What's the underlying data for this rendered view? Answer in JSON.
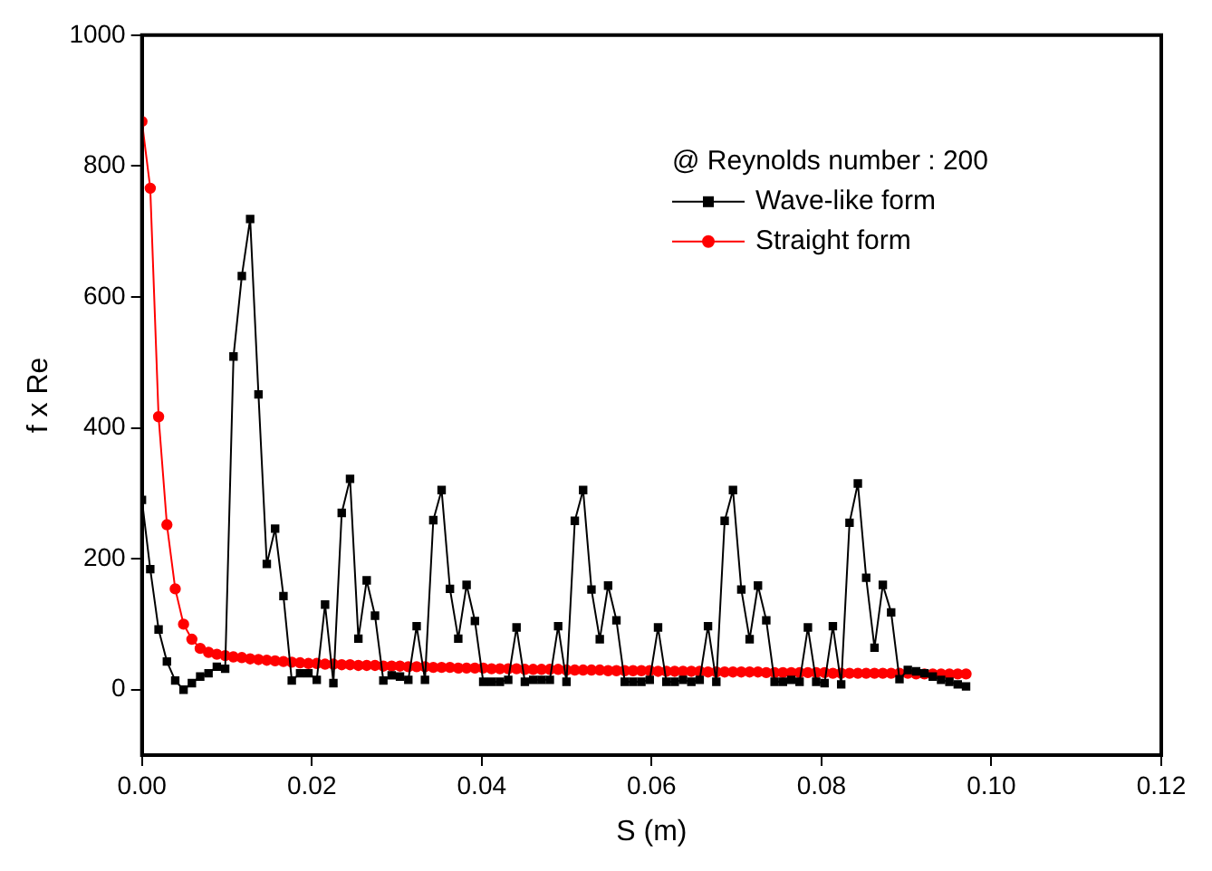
{
  "chart_data": {
    "type": "line",
    "xlabel": "S (m)",
    "ylabel": "f x Re",
    "legend_title": "@ Reynolds number : 200",
    "legend": "top right",
    "grid": false,
    "line_style": "solid",
    "xlim": [
      0,
      0.12
    ],
    "xticks": [
      {
        "value": 0,
        "label": "0.00"
      },
      {
        "value": 0.02,
        "label": "0.02"
      },
      {
        "value": 0.04,
        "label": "0.04"
      },
      {
        "value": 0.06,
        "label": "0.06"
      },
      {
        "value": 0.08,
        "label": "0.08"
      },
      {
        "value": 0.1,
        "label": "0.10"
      },
      {
        "value": 0.12,
        "label": "0.12"
      }
    ],
    "ylim": [
      -100,
      1000
    ],
    "yticks": [
      0,
      200,
      400,
      600,
      800,
      1000
    ],
    "x": [
      0,
      0.00098,
      0.00196,
      0.00294,
      0.00392,
      0.0049,
      0.00588,
      0.00686,
      0.00784,
      0.00882,
      0.0098,
      0.01078,
      0.01176,
      0.01274,
      0.01372,
      0.0147,
      0.01568,
      0.01666,
      0.01764,
      0.01862,
      0.0196,
      0.02058,
      0.02156,
      0.02254,
      0.02352,
      0.0245,
      0.02548,
      0.02646,
      0.02744,
      0.02842,
      0.0294,
      0.03038,
      0.03136,
      0.03234,
      0.03332,
      0.0343,
      0.03528,
      0.03626,
      0.03724,
      0.03822,
      0.0392,
      0.04018,
      0.04116,
      0.04214,
      0.04312,
      0.0441,
      0.04508,
      0.04606,
      0.04704,
      0.04802,
      0.049,
      0.04998,
      0.05096,
      0.05194,
      0.05292,
      0.0539,
      0.05488,
      0.05586,
      0.05684,
      0.05782,
      0.0588,
      0.05978,
      0.06076,
      0.06174,
      0.06272,
      0.0637,
      0.06468,
      0.06566,
      0.06664,
      0.06762,
      0.0686,
      0.06958,
      0.07056,
      0.07154,
      0.07252,
      0.0735,
      0.07448,
      0.07546,
      0.07644,
      0.07742,
      0.0784,
      0.07938,
      0.08036,
      0.08134,
      0.08232,
      0.0833,
      0.08428,
      0.08526,
      0.08624,
      0.08722,
      0.0882,
      0.08918,
      0.09016,
      0.09114,
      0.09212,
      0.0931,
      0.09408,
      0.09506,
      0.09604,
      0.09702
    ],
    "series": [
      {
        "name": "Wave-like form",
        "color": "#000000",
        "marker": "square",
        "values": [
          290,
          184,
          92,
          43,
          14,
          0,
          10,
          20,
          25,
          35,
          32,
          509,
          632,
          719,
          451,
          192,
          246,
          143,
          14,
          25,
          25,
          15,
          130,
          10,
          270,
          322,
          78,
          167,
          113,
          14,
          22,
          20,
          15,
          97,
          15,
          259,
          305,
          154,
          78,
          160,
          105,
          12,
          12,
          12,
          15,
          95,
          12,
          15,
          15,
          15,
          97,
          12,
          258,
          305,
          153,
          77,
          159,
          106,
          12,
          12,
          12,
          15,
          95,
          12,
          12,
          15,
          12,
          15,
          97,
          12,
          258,
          305,
          153,
          77,
          159,
          106,
          12,
          12,
          15,
          12,
          95,
          12,
          10,
          97,
          8,
          255,
          315,
          171,
          64,
          160,
          118,
          16,
          30,
          28,
          25,
          20,
          15,
          12,
          8,
          5
        ]
      },
      {
        "name": "Straight form",
        "color": "#ff0000",
        "marker": "circle",
        "values": [
          868,
          766,
          417,
          252,
          154,
          100,
          77,
          63,
          57,
          54,
          52,
          50,
          49,
          47,
          46,
          45,
          44,
          43,
          42,
          41,
          40,
          40,
          39,
          39,
          38,
          38,
          37,
          37,
          37,
          36,
          36,
          36,
          35,
          35,
          35,
          34,
          34,
          34,
          33,
          33,
          33,
          33,
          32,
          32,
          32,
          32,
          31,
          31,
          31,
          31,
          31,
          30,
          30,
          30,
          30,
          30,
          29,
          29,
          29,
          29,
          29,
          29,
          28,
          28,
          28,
          28,
          28,
          28,
          27,
          27,
          27,
          27,
          27,
          27,
          27,
          26,
          26,
          26,
          26,
          26,
          26,
          26,
          26,
          25,
          25,
          25,
          25,
          25,
          25,
          25,
          25,
          25,
          25,
          24,
          24,
          24,
          24,
          24,
          24,
          24
        ]
      }
    ]
  }
}
